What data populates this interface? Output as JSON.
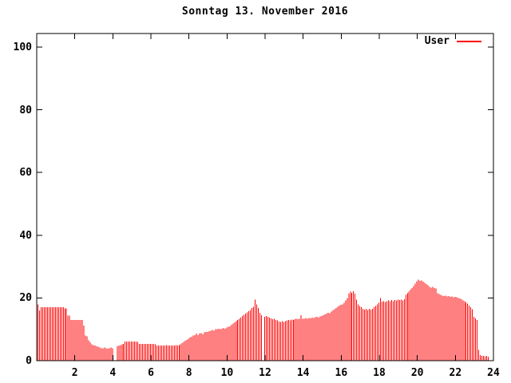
{
  "title": "Sonntag 13. November 2016",
  "legend": {
    "label": "User"
  },
  "colors": {
    "bar": "#ff0000",
    "axis": "#000000",
    "background": "#ffffff"
  },
  "chart_data": {
    "type": "bar",
    "title": "Sonntag 13. November 2016",
    "xlabel": "",
    "ylabel": "",
    "x_unit": "hour of day",
    "interval_minutes": 5,
    "xlim": [
      0,
      24
    ],
    "ylim": [
      0,
      100
    ],
    "x_ticks": [
      2,
      4,
      6,
      8,
      10,
      12,
      14,
      16,
      18,
      20,
      22,
      24
    ],
    "y_ticks": [
      0,
      20,
      40,
      60,
      80,
      100
    ],
    "grid": false,
    "legend_position": "top-right-inside",
    "series": [
      {
        "name": "User",
        "color": "#ff0000",
        "values": [
          18,
          16,
          17,
          17,
          17,
          17,
          17,
          17,
          17,
          17,
          17,
          17,
          17,
          17,
          17,
          17,
          17,
          16.7,
          16.7,
          14.4,
          14.4,
          13,
          13,
          13,
          13,
          13,
          13,
          13,
          13,
          11.2,
          8,
          7.8,
          6.5,
          5.8,
          5.2,
          5,
          4.8,
          4.6,
          4.4,
          4.2,
          4,
          4,
          4.2,
          4,
          3.8,
          4,
          4.2,
          4,
          0,
          0,
          4.6,
          4.8,
          5,
          5.2,
          5.4,
          6.1,
          6.1,
          6.1,
          6.1,
          6.1,
          6.1,
          6.1,
          6.1,
          6,
          5.4,
          5.4,
          5.4,
          5.4,
          5.4,
          5.4,
          5.4,
          5.4,
          5.4,
          5.3,
          5.2,
          4.8,
          4.8,
          4.8,
          4.8,
          4.8,
          4.8,
          5,
          4.8,
          4.8,
          4.8,
          4.8,
          4.8,
          5,
          4.8,
          5,
          5.2,
          5.6,
          6,
          6.3,
          6.6,
          7,
          7.4,
          7.6,
          8,
          8.2,
          8.6,
          8.2,
          8.6,
          8.8,
          8.4,
          9,
          9.2,
          9.2,
          9.4,
          9.6,
          9.8,
          9.6,
          10,
          10,
          10.2,
          10,
          10.2,
          10.4,
          10.2,
          10.5,
          10.8,
          11,
          11.4,
          11.8,
          12.2,
          12.6,
          13,
          13.4,
          13.8,
          14.2,
          14.6,
          15,
          15.4,
          15.8,
          16.2,
          16.8,
          17.2,
          19.5,
          18,
          16.8,
          15.3,
          14.5,
          0,
          14,
          14.2,
          14,
          13.8,
          13.5,
          13.2,
          13.4,
          13,
          12.8,
          12.5,
          12.4,
          12.6,
          12.4,
          12.6,
          12.8,
          13,
          12.9,
          13.1,
          13,
          13.2,
          13.4,
          13.2,
          13.4,
          14.5,
          13.4,
          13.4,
          13.6,
          13.4,
          13.6,
          13.5,
          13.8,
          13.6,
          13.9,
          14,
          13.8,
          14.1,
          14.3,
          14.5,
          14.8,
          15,
          15.3,
          15.1,
          15.6,
          16,
          16.4,
          16.8,
          17.2,
          17.5,
          17.8,
          18,
          18.4,
          19.2,
          20,
          21.4,
          22,
          21.6,
          22.1,
          21.4,
          19.5,
          18,
          17.4,
          17,
          16.6,
          16.3,
          16.6,
          16.2,
          16.5,
          16.3,
          16.6,
          17,
          17.4,
          17.9,
          18.5,
          20,
          18.8,
          19,
          18.7,
          19,
          19.2,
          18.9,
          19.3,
          19,
          19.4,
          19.2,
          19.5,
          19.3,
          19.5,
          19.2,
          19.6,
          21,
          21.5,
          22,
          22.6,
          23.2,
          23.8,
          24.5,
          25.3,
          25.8,
          25.4,
          25.6,
          25.2,
          24.8,
          24.4,
          24,
          23.6,
          23.3,
          23.6,
          23.2,
          23,
          21.5,
          21.2,
          21,
          20.8,
          20.6,
          20.8,
          20.5,
          20.6,
          20.3,
          20.5,
          20.2,
          20.4,
          20.2,
          20,
          19.8,
          19.6,
          19.2,
          19,
          18.6,
          18.2,
          17.6,
          17,
          16.4,
          14,
          13.5,
          13,
          3.5,
          1.8,
          1.5,
          1.5,
          1.4,
          1.5,
          1.3,
          0,
          0,
          0
        ]
      }
    ]
  }
}
